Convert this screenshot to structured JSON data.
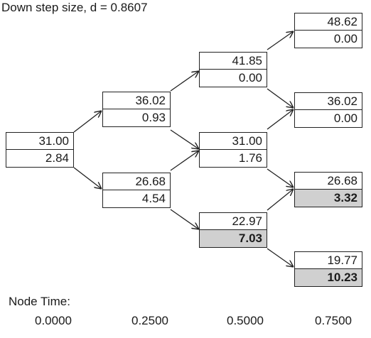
{
  "header": {
    "label": "Down step size, d = 0.8607"
  },
  "nodes": {
    "n00": {
      "price": "31.00",
      "value": "2.84"
    },
    "n10": {
      "price": "36.02",
      "value": "0.93"
    },
    "n11": {
      "price": "26.68",
      "value": "4.54"
    },
    "n20": {
      "price": "41.85",
      "value": "0.00"
    },
    "n21": {
      "price": "31.00",
      "value": "1.76"
    },
    "n22": {
      "price": "22.97",
      "value": "7.03"
    },
    "n30": {
      "price": "48.62",
      "value": "0.00"
    },
    "n31": {
      "price": "36.02",
      "value": "0.00"
    },
    "n32": {
      "price": "26.68",
      "value": "3.32"
    },
    "n33": {
      "price": "19.77",
      "value": "10.23"
    }
  },
  "node_time": {
    "title": "Node Time:",
    "steps": [
      "0.0000",
      "0.2500",
      "0.5000",
      "0.7500"
    ]
  },
  "colors": {
    "highlight": "#d0d0d0",
    "line": "#222222"
  }
}
